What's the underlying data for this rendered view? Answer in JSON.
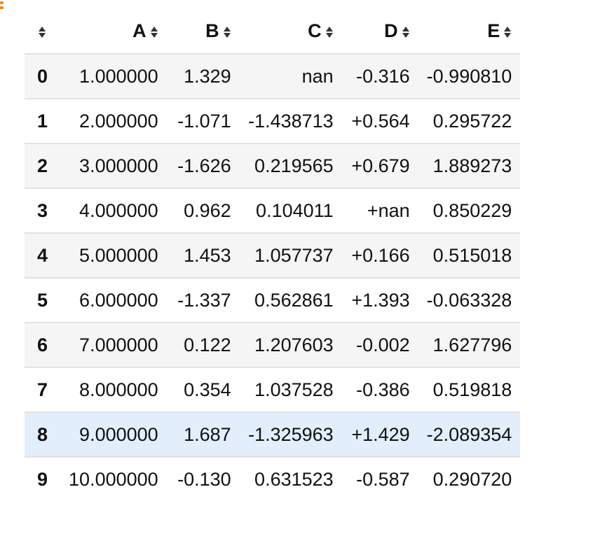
{
  "table": {
    "columns": [
      "A",
      "B",
      "C",
      "D",
      "E"
    ],
    "rows": [
      {
        "index": "0",
        "A": "1.000000",
        "B": "1.329",
        "C": "nan",
        "D": "-0.316",
        "E": "-0.990810"
      },
      {
        "index": "1",
        "A": "2.000000",
        "B": "-1.071",
        "C": "-1.438713",
        "D": "+0.564",
        "E": "0.295722"
      },
      {
        "index": "2",
        "A": "3.000000",
        "B": "-1.626",
        "C": "0.219565",
        "D": "+0.679",
        "E": "1.889273"
      },
      {
        "index": "3",
        "A": "4.000000",
        "B": "0.962",
        "C": "0.104011",
        "D": "+nan",
        "E": "0.850229"
      },
      {
        "index": "4",
        "A": "5.000000",
        "B": "1.453",
        "C": "1.057737",
        "D": "+0.166",
        "E": "0.515018"
      },
      {
        "index": "5",
        "A": "6.000000",
        "B": "-1.337",
        "C": "0.562861",
        "D": "+1.393",
        "E": "-0.063328"
      },
      {
        "index": "6",
        "A": "7.000000",
        "B": "0.122",
        "C": "1.207603",
        "D": "-0.002",
        "E": "1.627796"
      },
      {
        "index": "7",
        "A": "8.000000",
        "B": "0.354",
        "C": "1.037528",
        "D": "-0.386",
        "E": "0.519818"
      },
      {
        "index": "8",
        "A": "9.000000",
        "B": "1.687",
        "C": "-1.325963",
        "D": "+1.429",
        "E": "-2.089354"
      },
      {
        "index": "9",
        "A": "10.000000",
        "B": "-0.130",
        "C": "0.631523",
        "D": "-0.587",
        "E": "0.290720"
      }
    ],
    "selected_row_index": 8
  },
  "colors": {
    "stripe": "#f5f5f5",
    "selected_row": "#e2eefb",
    "border": "#e2e2e2",
    "corner_mark": "#f08a24"
  },
  "icons": {
    "sort": "sort-icon",
    "corner": "corner-mark-icon"
  }
}
